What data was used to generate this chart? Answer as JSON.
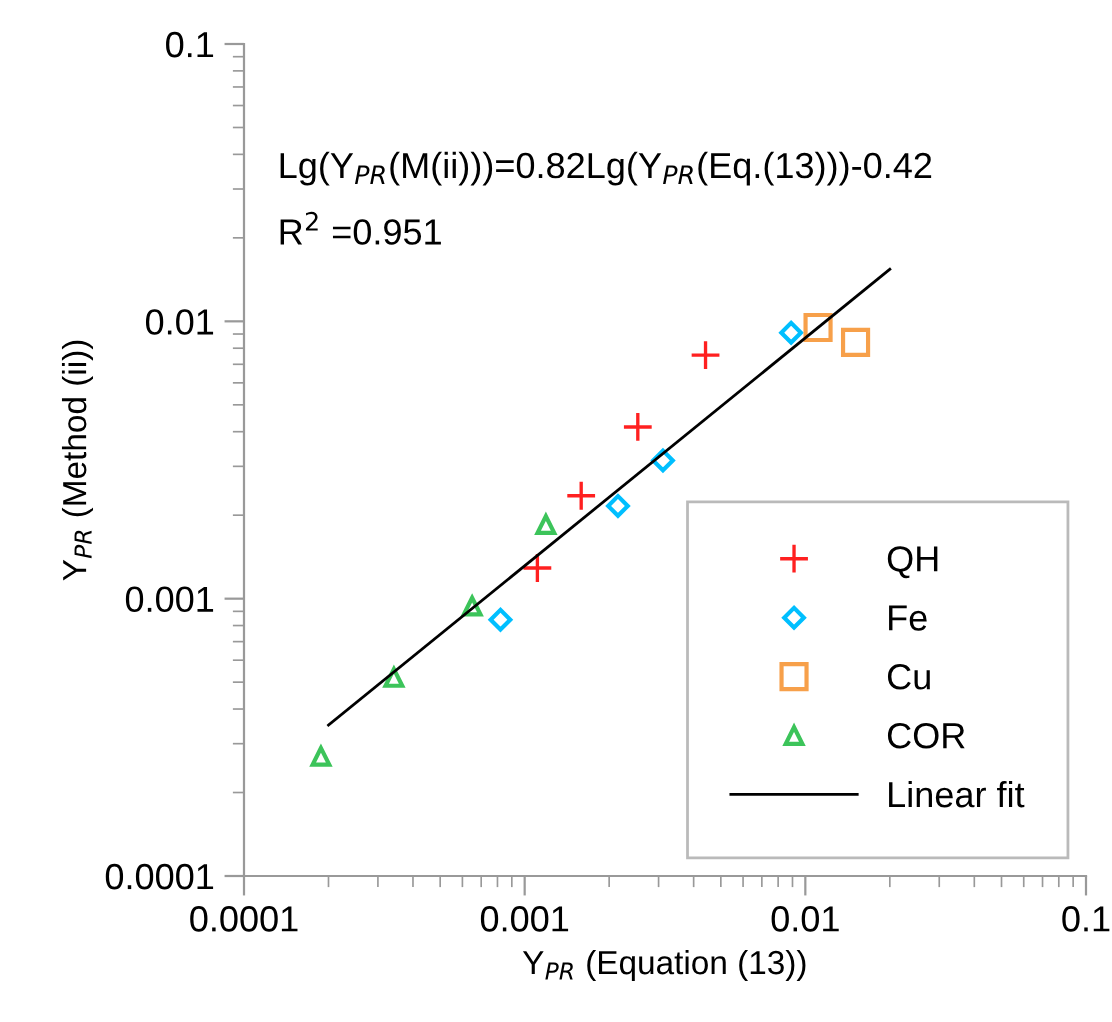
{
  "chart_data": {
    "type": "scatter",
    "xlabel": "Y$_{PR}$ (Equation (13))",
    "ylabel": "Y$_{PR}$ (Method (ii))",
    "log": "xy",
    "xlim": [
      0.0001,
      0.1
    ],
    "ylim": [
      0.0001,
      0.1
    ],
    "xticks": [
      0.0001,
      0.001,
      0.01,
      0.1
    ],
    "yticks": [
      0.0001,
      0.001,
      0.01,
      0.1
    ],
    "grid": false,
    "legend": "bottom right",
    "annotations": [
      "Lg(Y$_{PR}$(M(ii)))=0.82Lg(Y$_{PR}$(Eq.(13)))-0.42",
      "R$^{2}$ =0.951"
    ],
    "series": [
      {
        "name": "QH",
        "color": "#ff2020",
        "marker": "cross",
        "x": [
          0.00111,
          0.00159,
          0.00253,
          0.00441
        ],
        "values": [
          0.00129,
          0.00235,
          0.00416,
          0.00755
        ]
      },
      {
        "name": "Fe",
        "color": "#00bfff",
        "marker": "diamond",
        "x": [
          0.00082,
          0.00215,
          0.00311,
          0.0089
        ],
        "values": [
          0.00084,
          0.00216,
          0.00315,
          0.0091
        ]
      },
      {
        "name": "Cu",
        "color": "#f7a04a",
        "marker": "square",
        "x": [
          0.0111,
          0.0151
        ],
        "values": [
          0.0095,
          0.0084
        ]
      },
      {
        "name": "COR",
        "color": "#3cc45a",
        "marker": "triangle",
        "x": [
          0.000188,
          0.000342,
          0.00065,
          0.00119
        ],
        "values": [
          0.00027,
          0.00052,
          0.00094,
          0.00185
        ]
      },
      {
        "name": "Linear fit",
        "type": "line",
        "color": "#000000",
        "line_style": "solid",
        "x": [
          0.0002,
          0.02
        ],
        "values": [
          0.00035,
          0.0154
        ]
      }
    ]
  }
}
